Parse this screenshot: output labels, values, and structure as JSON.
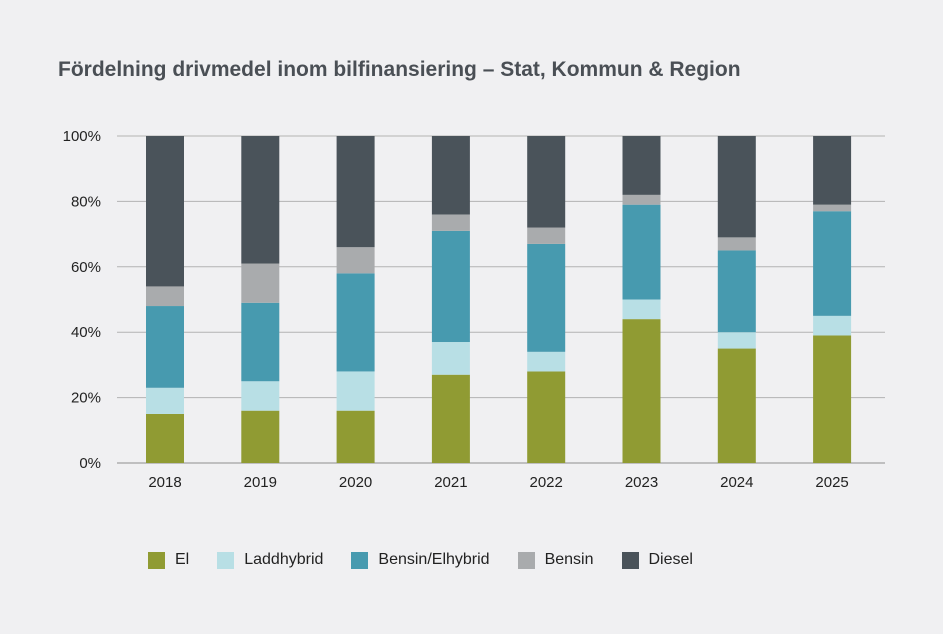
{
  "chart_data": {
    "type": "bar",
    "stacked": true,
    "title": "Fördelning drivmedel inom bilfinansiering – Stat, Kommun & Region",
    "xlabel": "",
    "ylabel": "",
    "ylim": [
      0,
      100
    ],
    "yticks": [
      0,
      20,
      40,
      60,
      80,
      100
    ],
    "ytick_labels": [
      "0%",
      "20%",
      "40%",
      "60%",
      "80%",
      "100%"
    ],
    "grid": true,
    "legend_position": "bottom",
    "categories": [
      "2018",
      "2019",
      "2020",
      "2021",
      "2022",
      "2023",
      "2024",
      "2025"
    ],
    "series": [
      {
        "name": "El",
        "color": "#909b33",
        "values": [
          15,
          16,
          16,
          27,
          28,
          44,
          35,
          39
        ]
      },
      {
        "name": "Laddhybrid",
        "color": "#b8dfe5",
        "values": [
          8,
          9,
          12,
          10,
          6,
          6,
          5,
          6
        ]
      },
      {
        "name": "Bensin/Elhybrid",
        "color": "#479aaf",
        "values": [
          25,
          24,
          30,
          34,
          33,
          29,
          25,
          32
        ]
      },
      {
        "name": "Bensin",
        "color": "#a9abad",
        "values": [
          6,
          12,
          8,
          5,
          5,
          3,
          4,
          2
        ]
      },
      {
        "name": "Diesel",
        "color": "#4a535a",
        "values": [
          46,
          39,
          34,
          24,
          28,
          18,
          31,
          21
        ]
      }
    ]
  }
}
